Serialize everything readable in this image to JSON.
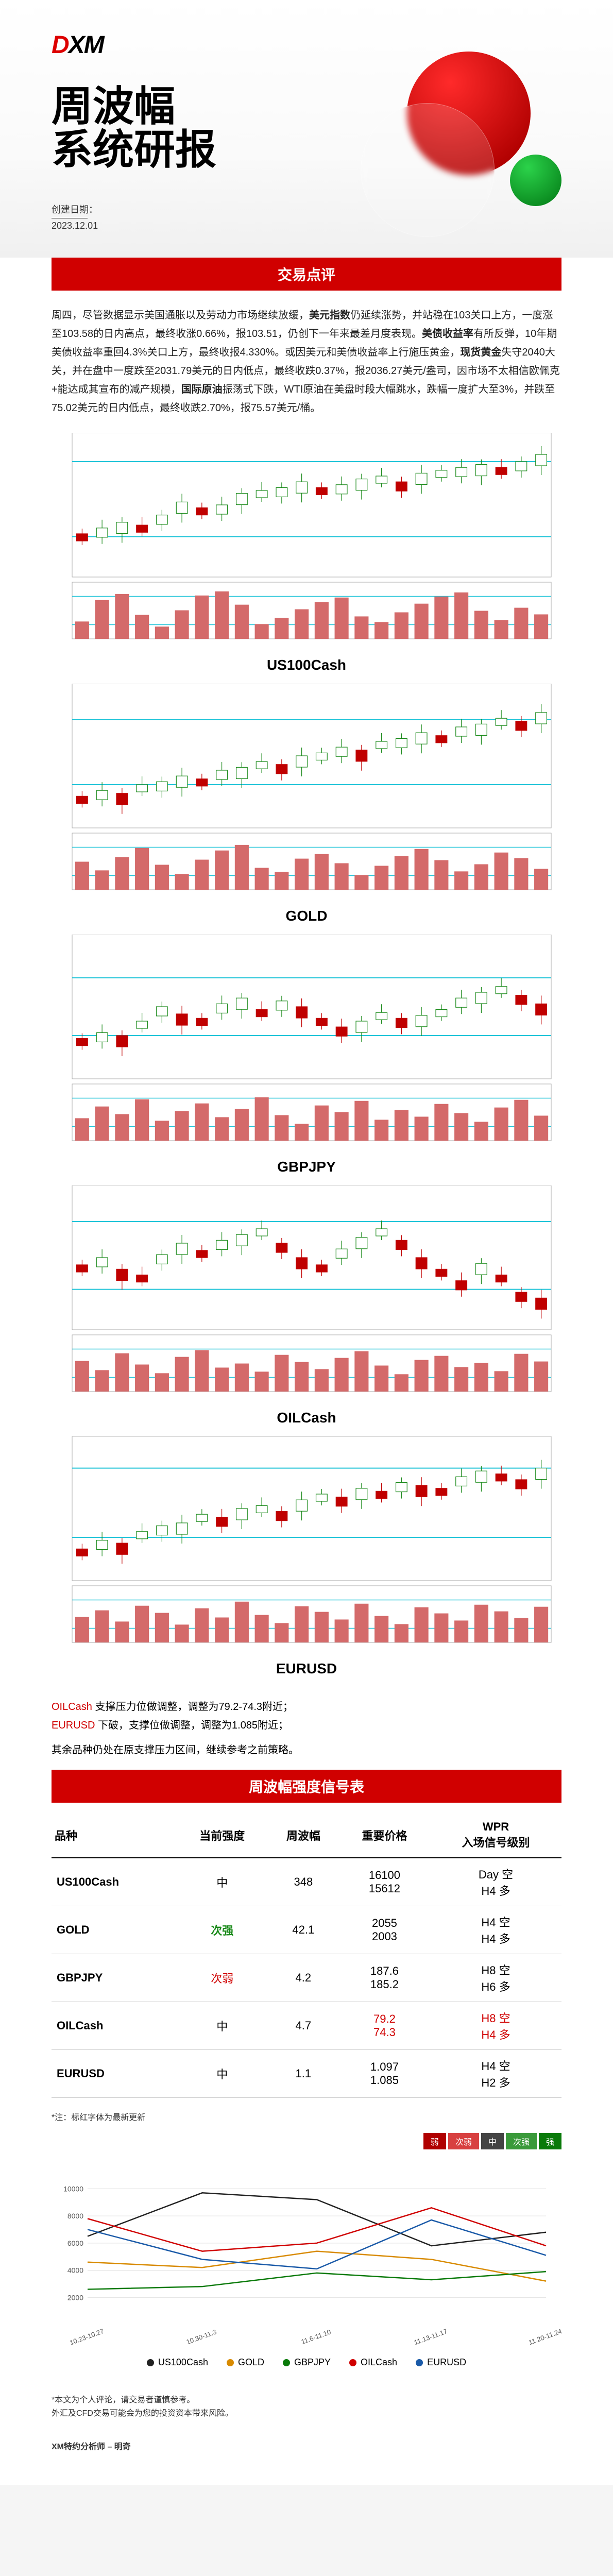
{
  "logo": {
    "left": "D",
    "right": "XM"
  },
  "title_line1": "周波幅",
  "title_line2": "系统研报",
  "meta_label": "创建日期：",
  "meta_date": "2023.12.01",
  "section_commentary_title": "交易点评",
  "commentary_html": "周四，尽管数据显示美国通胀以及劳动力市场继续放缓，<b>美元指数</b>仍延续涨势，并站稳在103关口上方，一度涨至103.58的日内高点，最终收涨0.66%，报103.51，仍创下一年来最差月度表现。<b>美债收益率</b>有所反弹，10年期美债收益率重回4.3%关口上方，最终收报4.330%。或因美元和美债收益率上行施压黄金，<b>现货黄金</b>失守2040大关，并在盘中一度跌至2031.79美元的日内低点，最终收跌0.37%，报2036.27美元/盎司，因市场不太相信欧佩克+能达成其宣布的减产规模，<b>国际原油</b>振荡式下跌，WTI原油在美盘时段大幅跳水，跌幅一度扩大至3%，并跌至75.02美元的日内低点，最终收跌2.70%，报75.57美元/桶。",
  "charts": [
    {
      "label": "US100Cash",
      "base": 132,
      "bars": [
        0.34,
        0.76,
        0.88,
        0.47,
        0.24,
        0.56,
        0.85,
        0.93,
        0.67,
        0.29,
        0.41,
        0.58,
        0.72,
        0.81,
        0.44,
        0.33,
        0.52,
        0.69,
        0.83,
        0.91,
        0.55,
        0.37,
        0.61,
        0.48
      ],
      "candles": [
        0.7,
        0.66,
        0.62,
        0.64,
        0.57,
        0.48,
        0.52,
        0.5,
        0.42,
        0.4,
        0.38,
        0.34,
        0.38,
        0.36,
        0.32,
        0.3,
        0.34,
        0.28,
        0.26,
        0.24,
        0.22,
        0.24,
        0.2,
        0.15
      ],
      "h1": 0.2,
      "h2": 0.72
    },
    {
      "label": "GOLD",
      "base": 132,
      "bars": [
        0.55,
        0.38,
        0.64,
        0.82,
        0.49,
        0.31,
        0.59,
        0.77,
        0.88,
        0.43,
        0.35,
        0.61,
        0.7,
        0.52,
        0.29,
        0.47,
        0.66,
        0.8,
        0.58,
        0.36,
        0.5,
        0.73,
        0.62,
        0.41
      ],
      "candles": [
        0.78,
        0.74,
        0.76,
        0.7,
        0.68,
        0.64,
        0.66,
        0.6,
        0.58,
        0.54,
        0.56,
        0.5,
        0.48,
        0.44,
        0.46,
        0.4,
        0.38,
        0.34,
        0.36,
        0.3,
        0.28,
        0.24,
        0.26,
        0.2
      ],
      "h1": 0.25,
      "h2": 0.7
    },
    {
      "label": "GBPJPY",
      "base": 132,
      "bars": [
        0.44,
        0.67,
        0.52,
        0.81,
        0.39,
        0.58,
        0.73,
        0.46,
        0.62,
        0.85,
        0.5,
        0.33,
        0.69,
        0.56,
        0.78,
        0.41,
        0.6,
        0.47,
        0.72,
        0.54,
        0.37,
        0.65,
        0.8,
        0.49
      ],
      "candles": [
        0.72,
        0.68,
        0.7,
        0.6,
        0.5,
        0.55,
        0.58,
        0.48,
        0.44,
        0.52,
        0.46,
        0.5,
        0.58,
        0.64,
        0.6,
        0.54,
        0.58,
        0.56,
        0.52,
        0.44,
        0.4,
        0.36,
        0.42,
        0.48
      ],
      "h1": 0.3,
      "h2": 0.7
    },
    {
      "label": "OILCash",
      "base": 132,
      "bars": [
        0.6,
        0.42,
        0.75,
        0.53,
        0.36,
        0.68,
        0.81,
        0.47,
        0.55,
        0.39,
        0.72,
        0.58,
        0.44,
        0.66,
        0.79,
        0.51,
        0.34,
        0.62,
        0.7,
        0.48,
        0.56,
        0.4,
        0.74,
        0.59
      ],
      "candles": [
        0.55,
        0.5,
        0.58,
        0.62,
        0.48,
        0.4,
        0.45,
        0.38,
        0.34,
        0.3,
        0.4,
        0.5,
        0.55,
        0.44,
        0.36,
        0.3,
        0.38,
        0.5,
        0.58,
        0.66,
        0.54,
        0.62,
        0.74,
        0.78
      ],
      "h1": 0.25,
      "h2": 0.72
    },
    {
      "label": "EURUSD",
      "base": 132,
      "bars": [
        0.5,
        0.63,
        0.41,
        0.72,
        0.58,
        0.35,
        0.67,
        0.49,
        0.8,
        0.54,
        0.38,
        0.71,
        0.6,
        0.45,
        0.76,
        0.52,
        0.36,
        0.69,
        0.57,
        0.43,
        0.74,
        0.61,
        0.48,
        0.7
      ],
      "candles": [
        0.78,
        0.72,
        0.74,
        0.66,
        0.62,
        0.6,
        0.54,
        0.56,
        0.5,
        0.48,
        0.52,
        0.44,
        0.4,
        0.42,
        0.36,
        0.38,
        0.32,
        0.34,
        0.36,
        0.28,
        0.24,
        0.26,
        0.3,
        0.22
      ],
      "h1": 0.22,
      "h2": 0.7
    }
  ],
  "notes": [
    {
      "symbol": "OILCash",
      "text": " 支撑压力位做调整，调整为79.2-74.3附近；",
      "red": true
    },
    {
      "symbol": "EURUSD",
      "text": " 下破，支撑位做调整，调整为1.085附近；",
      "red": true
    },
    {
      "symbol": "",
      "text": "其余品种仍处在原支撑压力区间，继续参考之前策略。",
      "red": false
    }
  ],
  "table_title": "周波幅强度信号表",
  "table_head": [
    "品种",
    "当前强度",
    "周波幅",
    "重要价格",
    "WPR\n入场信号级别"
  ],
  "table_rows": [
    {
      "cells": [
        "US100Cash",
        "中",
        "348",
        "16100\n15612",
        "Day 空\nH4 多"
      ],
      "strength_class": "",
      "red_cols": []
    },
    {
      "cells": [
        "GOLD",
        "次强",
        "42.1",
        "2055\n2003",
        "H4 空\nH4 多"
      ],
      "strength_class": "green-text",
      "red_cols": []
    },
    {
      "cells": [
        "GBPJPY",
        "次弱",
        "4.2",
        "187.6\n185.2",
        "H8 空\nH6 多"
      ],
      "strength_class": "red-text",
      "red_cols": []
    },
    {
      "cells": [
        "OILCash",
        "中",
        "4.7",
        "79.2\n74.3",
        "H8 空\nH4 多"
      ],
      "strength_class": "",
      "red_cols": [
        3,
        4
      ]
    },
    {
      "cells": [
        "EURUSD",
        "中",
        "1.1",
        "1.097\n1.085",
        "H4 空\nH2 多"
      ],
      "strength_class": "",
      "red_cols": []
    }
  ],
  "table_note": "*注：标红字体为最新更新",
  "strength_legend": [
    {
      "label": "弱",
      "color": "#b00000"
    },
    {
      "label": "次弱",
      "color": "#d84040"
    },
    {
      "label": "中",
      "color": "#444444"
    },
    {
      "label": "次强",
      "color": "#3a9a3a"
    },
    {
      "label": "强",
      "color": "#0a7a0a"
    }
  ],
  "linechart": {
    "yticks": [
      2000,
      4000,
      6000,
      8000,
      10000
    ],
    "xlabels": [
      "10.23-10.27",
      "10.30-11.3",
      "11.6-11.10",
      "11.13-11.17",
      "11.20-11.24"
    ],
    "series": [
      {
        "name": "US100Cash",
        "color": "#222222",
        "values": [
          6500,
          9700,
          9200,
          5800,
          6800
        ]
      },
      {
        "name": "GOLD",
        "color": "#d88a00",
        "values": [
          4600,
          4200,
          5400,
          4800,
          3200
        ]
      },
      {
        "name": "GBPJPY",
        "color": "#0a7a0a",
        "values": [
          2600,
          2800,
          3800,
          3300,
          3900
        ]
      },
      {
        "name": "OILCash",
        "color": "#d00000",
        "values": [
          7800,
          5400,
          6000,
          8600,
          5800
        ]
      },
      {
        "name": "EURUSD",
        "color": "#1a5aa8",
        "values": [
          7000,
          4800,
          4100,
          7700,
          5100
        ]
      }
    ],
    "ymax": 11000
  },
  "disclaimer1": "*本文为个人评论，请交易者谨慎参考。",
  "disclaimer2": "外汇及CFD交易可能会为您的投资资本带来风险。",
  "analyst": "XM特约分析师 – 明奇"
}
